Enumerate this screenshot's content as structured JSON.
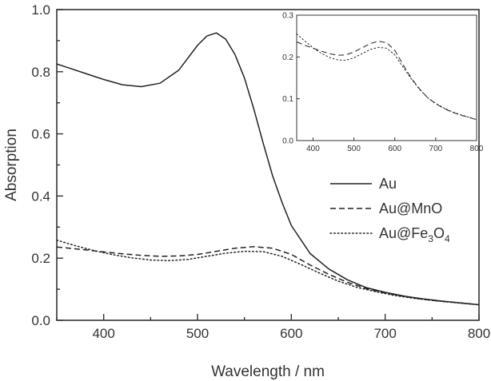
{
  "chart_data": [
    {
      "type": "line",
      "title": "",
      "xlabel": "Wavelength / nm",
      "ylabel": "Absorption",
      "xlim": [
        350,
        800
      ],
      "ylim": [
        0.0,
        1.0
      ],
      "xticks": [
        "400",
        "500",
        "600",
        "700",
        "800"
      ],
      "xtick_values": [
        400,
        500,
        600,
        700,
        800
      ],
      "yticks": [
        "0.0",
        "0.2",
        "0.4",
        "0.6",
        "0.8",
        "1.0"
      ],
      "ytick_values": [
        0.0,
        0.2,
        0.4,
        0.6,
        0.8,
        1.0
      ],
      "grid": false,
      "legend_position": "right",
      "legend": [
        {
          "label": "Au",
          "sub": "",
          "tail": "",
          "style": "solid"
        },
        {
          "label": "Au@MnO",
          "sub": "",
          "tail": "",
          "style": "dashed"
        },
        {
          "label": "Au@Fe",
          "sub": "3",
          "tail": "O",
          "sub2": "4",
          "style": "dotted"
        }
      ],
      "series": [
        {
          "style": "solid",
          "x": [
            350,
            360,
            380,
            400,
            420,
            440,
            460,
            480,
            490,
            500,
            510,
            520,
            530,
            540,
            550,
            560,
            570,
            580,
            590,
            600,
            620,
            640,
            660,
            680,
            700,
            720,
            740,
            760,
            780,
            800
          ],
          "y": [
            0.825,
            0.815,
            0.795,
            0.775,
            0.758,
            0.752,
            0.763,
            0.805,
            0.845,
            0.885,
            0.915,
            0.925,
            0.905,
            0.855,
            0.78,
            0.68,
            0.57,
            0.465,
            0.38,
            0.305,
            0.215,
            0.165,
            0.13,
            0.105,
            0.09,
            0.078,
            0.069,
            0.062,
            0.056,
            0.05
          ]
        },
        {
          "style": "dashed",
          "x": [
            350,
            380,
            400,
            420,
            440,
            460,
            480,
            500,
            520,
            540,
            560,
            580,
            600,
            620,
            640,
            660,
            680,
            700,
            720,
            740,
            760,
            780,
            800
          ],
          "y": [
            0.236,
            0.227,
            0.22,
            0.214,
            0.209,
            0.206,
            0.207,
            0.212,
            0.222,
            0.232,
            0.237,
            0.232,
            0.212,
            0.178,
            0.148,
            0.122,
            0.102,
            0.088,
            0.077,
            0.068,
            0.061,
            0.056,
            0.05
          ]
        },
        {
          "style": "dotted",
          "x": [
            350,
            370,
            390,
            410,
            430,
            450,
            470,
            490,
            510,
            530,
            550,
            570,
            590,
            610,
            630,
            650,
            670,
            690,
            710,
            730,
            750,
            770,
            800
          ],
          "y": [
            0.258,
            0.24,
            0.224,
            0.211,
            0.201,
            0.194,
            0.192,
            0.196,
            0.206,
            0.216,
            0.222,
            0.221,
            0.206,
            0.18,
            0.152,
            0.126,
            0.106,
            0.092,
            0.08,
            0.071,
            0.064,
            0.058,
            0.05
          ]
        }
      ]
    },
    {
      "type": "line",
      "title": "",
      "xlabel": "",
      "ylabel": "",
      "xlim": [
        360,
        800
      ],
      "ylim": [
        0.0,
        0.3
      ],
      "xticks": [
        "400",
        "500",
        "600",
        "700",
        "800"
      ],
      "xtick_values": [
        400,
        500,
        600,
        700,
        800
      ],
      "yticks": [
        "0.0",
        "0.1",
        "0.2",
        "0.3"
      ],
      "ytick_values": [
        0.0,
        0.1,
        0.2,
        0.3
      ],
      "grid": false,
      "legend_position": "",
      "position": "inset-top-right",
      "series": [
        {
          "style": "dashed",
          "x": [
            360,
            380,
            400,
            420,
            440,
            460,
            480,
            500,
            520,
            540,
            560,
            580,
            600,
            620,
            640,
            660,
            680,
            700,
            720,
            740,
            760,
            780,
            800
          ],
          "y": [
            0.236,
            0.228,
            0.221,
            0.214,
            0.208,
            0.204,
            0.205,
            0.212,
            0.222,
            0.232,
            0.238,
            0.234,
            0.216,
            0.182,
            0.15,
            0.124,
            0.103,
            0.088,
            0.077,
            0.068,
            0.061,
            0.056,
            0.05
          ]
        },
        {
          "style": "dotted",
          "x": [
            360,
            380,
            400,
            420,
            440,
            460,
            480,
            500,
            520,
            540,
            560,
            580,
            600,
            620,
            640,
            660,
            680,
            700,
            720,
            740,
            760,
            780,
            800
          ],
          "y": [
            0.255,
            0.238,
            0.222,
            0.209,
            0.199,
            0.193,
            0.192,
            0.198,
            0.208,
            0.218,
            0.223,
            0.221,
            0.205,
            0.176,
            0.148,
            0.123,
            0.103,
            0.089,
            0.078,
            0.069,
            0.062,
            0.056,
            0.05
          ]
        }
      ]
    }
  ]
}
